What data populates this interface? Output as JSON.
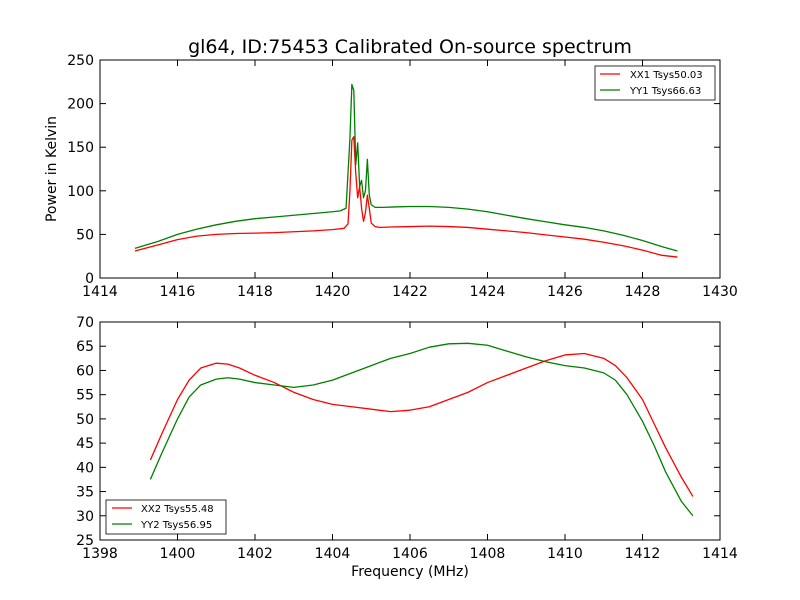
{
  "figure": {
    "title": "gl64, ID:75453 Calibrated On-source spectrum"
  },
  "chart_data": [
    {
      "type": "line",
      "title": "gl64, ID:75453 Calibrated On-source spectrum",
      "xlabel": "",
      "ylabel": "Power in Kelvin",
      "xlim": [
        1414,
        1430
      ],
      "ylim": [
        0,
        250
      ],
      "xticks": [
        1414,
        1416,
        1418,
        1420,
        1422,
        1424,
        1426,
        1428,
        1430
      ],
      "yticks": [
        0,
        50,
        100,
        150,
        200,
        250
      ],
      "legend_position": "top-right",
      "grid": false,
      "series": [
        {
          "name": "XX1 Tsys50.03",
          "color": "#ff0000",
          "x": [
            1414.9,
            1415.5,
            1416.0,
            1416.5,
            1417.0,
            1417.5,
            1418.0,
            1418.5,
            1419.0,
            1419.5,
            1420.0,
            1420.3,
            1420.4,
            1420.45,
            1420.5,
            1420.55,
            1420.6,
            1420.65,
            1420.7,
            1420.75,
            1420.8,
            1420.85,
            1420.9,
            1420.95,
            1421.0,
            1421.1,
            1421.2,
            1421.5,
            1422.0,
            1422.5,
            1423.0,
            1423.5,
            1424.0,
            1424.5,
            1425.0,
            1425.5,
            1426.0,
            1426.5,
            1427.0,
            1427.5,
            1428.0,
            1428.5,
            1428.9
          ],
          "y": [
            31,
            38,
            44,
            48,
            50,
            51,
            51.5,
            52,
            53,
            54,
            55.5,
            57,
            62,
            100,
            158,
            162,
            120,
            92,
            105,
            80,
            65,
            75,
            95,
            80,
            63,
            59,
            58,
            58.5,
            59,
            59.5,
            59,
            58,
            56,
            54,
            52,
            49.5,
            47,
            44.5,
            41,
            37,
            32,
            26,
            24
          ]
        },
        {
          "name": "YY1 Tsys66.63",
          "color": "#008000",
          "x": [
            1414.9,
            1415.5,
            1416.0,
            1416.5,
            1417.0,
            1417.5,
            1418.0,
            1418.5,
            1419.0,
            1419.5,
            1420.0,
            1420.2,
            1420.35,
            1420.45,
            1420.5,
            1420.55,
            1420.6,
            1420.65,
            1420.7,
            1420.75,
            1420.8,
            1420.85,
            1420.9,
            1420.95,
            1421.0,
            1421.1,
            1421.3,
            1421.6,
            1422.0,
            1422.5,
            1423.0,
            1423.5,
            1424.0,
            1424.5,
            1425.0,
            1425.5,
            1426.0,
            1426.5,
            1427.0,
            1427.5,
            1428.0,
            1428.5,
            1428.9
          ],
          "y": [
            34,
            42,
            50,
            56,
            61,
            65,
            68,
            70,
            72,
            74,
            76,
            77,
            80,
            160,
            222,
            215,
            130,
            155,
            105,
            112,
            92,
            100,
            136,
            95,
            84,
            81,
            81,
            81.5,
            82,
            82,
            81,
            79,
            76,
            72,
            68,
            64.5,
            61,
            58,
            54,
            49,
            43,
            36,
            31
          ]
        }
      ]
    },
    {
      "type": "line",
      "title": "",
      "xlabel": "Frequency (MHz)",
      "ylabel": "",
      "xlim": [
        1398,
        1414
      ],
      "ylim": [
        25,
        70
      ],
      "xticks": [
        1398,
        1400,
        1402,
        1404,
        1406,
        1408,
        1410,
        1412,
        1414
      ],
      "yticks": [
        25,
        30,
        35,
        40,
        45,
        50,
        55,
        60,
        65,
        70
      ],
      "legend_position": "bottom-left",
      "grid": false,
      "series": [
        {
          "name": "XX2 Tsys55.48",
          "color": "#ff0000",
          "x": [
            1399.3,
            1399.6,
            1400.0,
            1400.3,
            1400.6,
            1401.0,
            1401.3,
            1401.6,
            1402.0,
            1402.5,
            1403.0,
            1403.5,
            1404.0,
            1404.5,
            1405.0,
            1405.5,
            1406.0,
            1406.5,
            1407.0,
            1407.5,
            1408.0,
            1408.5,
            1409.0,
            1409.5,
            1410.0,
            1410.5,
            1411.0,
            1411.3,
            1411.6,
            1412.0,
            1412.3,
            1412.6,
            1413.0,
            1413.3
          ],
          "y": [
            41.5,
            47,
            54,
            58,
            60.5,
            61.5,
            61.3,
            60.5,
            59,
            57.5,
            55.5,
            54,
            53,
            52.5,
            52,
            51.5,
            51.8,
            52.5,
            54,
            55.5,
            57.5,
            59,
            60.5,
            62,
            63.2,
            63.5,
            62.5,
            61,
            58.5,
            54,
            49,
            44,
            38,
            34
          ]
        },
        {
          "name": "YY2 Tsys56.95",
          "color": "#008000",
          "x": [
            1399.3,
            1399.6,
            1400.0,
            1400.3,
            1400.6,
            1401.0,
            1401.3,
            1401.6,
            1402.0,
            1402.5,
            1403.0,
            1403.5,
            1404.0,
            1404.5,
            1405.0,
            1405.5,
            1406.0,
            1406.5,
            1407.0,
            1407.5,
            1408.0,
            1408.5,
            1409.0,
            1409.5,
            1410.0,
            1410.5,
            1411.0,
            1411.3,
            1411.6,
            1412.0,
            1412.3,
            1412.6,
            1413.0,
            1413.3
          ],
          "y": [
            37.5,
            43,
            50,
            54.5,
            57,
            58.2,
            58.5,
            58.2,
            57.5,
            57,
            56.5,
            57,
            58,
            59.5,
            61,
            62.5,
            63.5,
            64.8,
            65.5,
            65.6,
            65.2,
            64,
            62.8,
            61.8,
            61,
            60.5,
            59.5,
            58,
            55,
            49.5,
            44.5,
            39,
            33,
            30
          ]
        }
      ]
    }
  ]
}
